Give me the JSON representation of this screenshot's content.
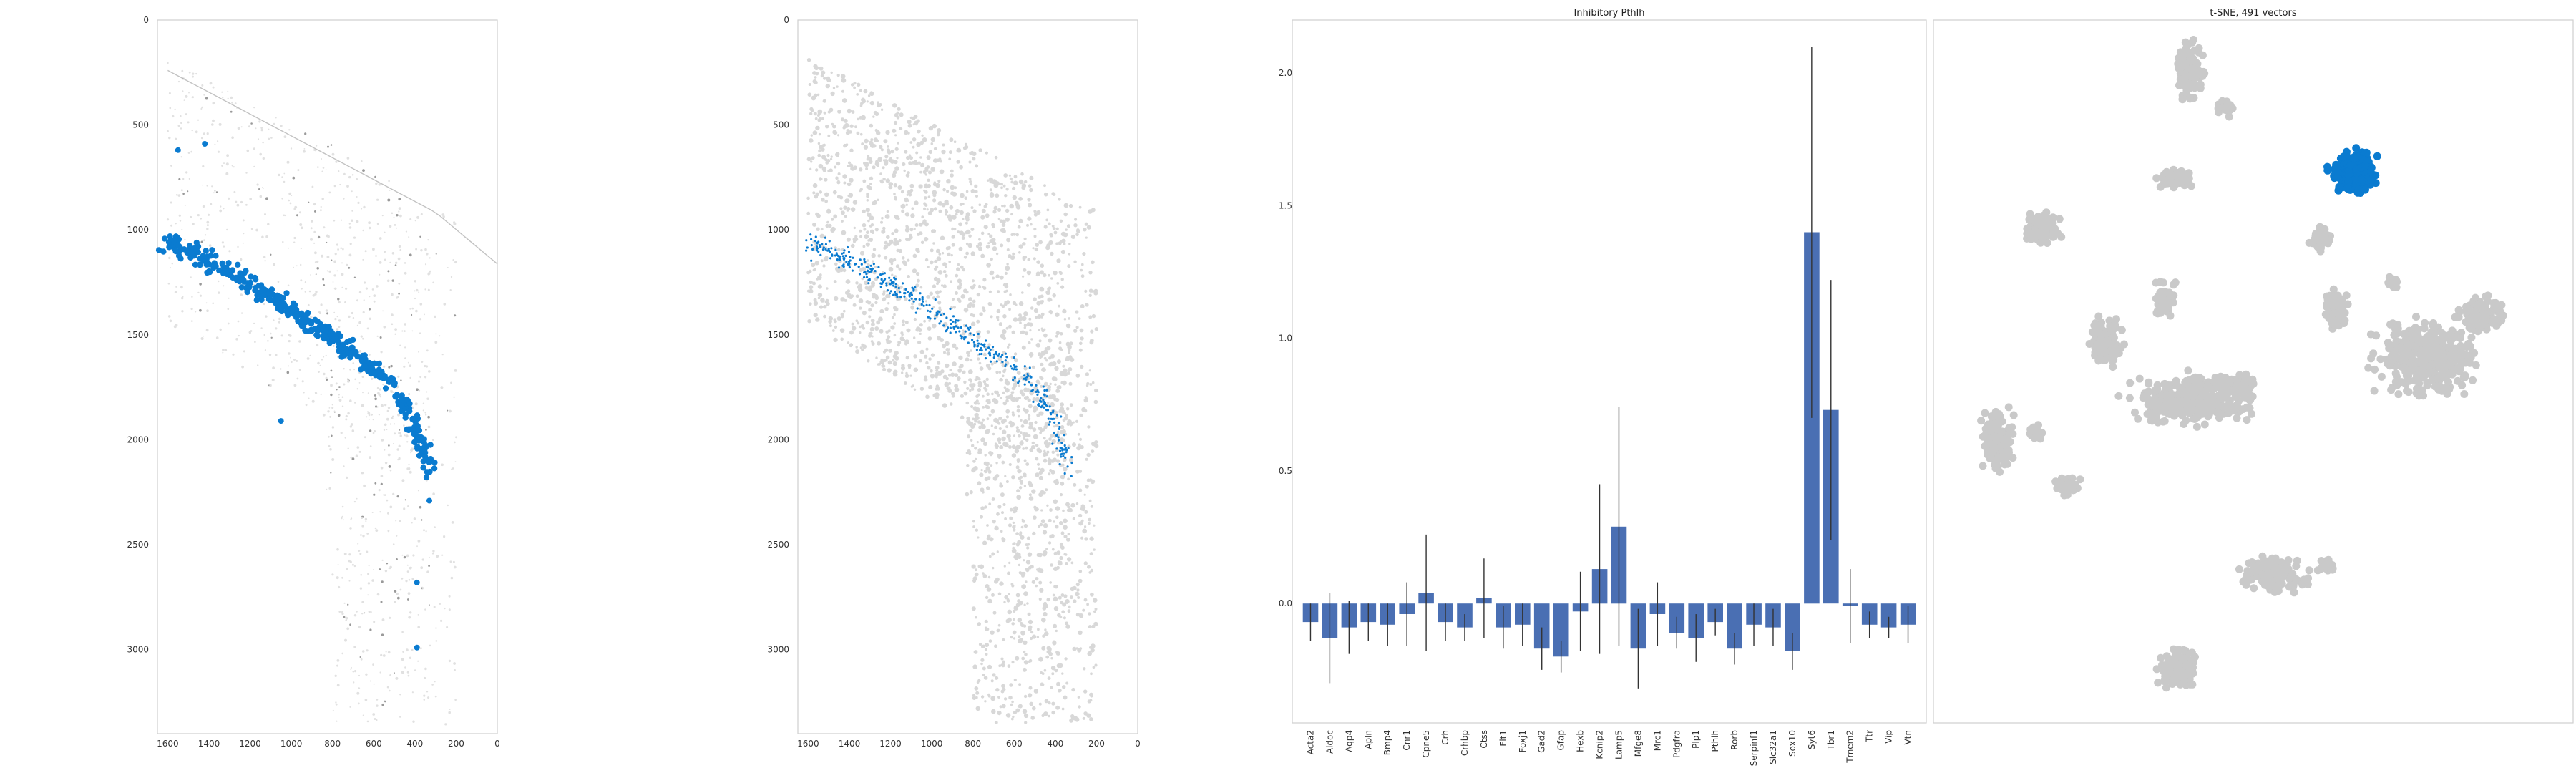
{
  "colors": {
    "accent": "#0a7bd0",
    "bar": "#4a6fb3",
    "grey_point": "#c9c9c9",
    "tissue": "#d8d8d8",
    "axis": "#cfcfcf"
  },
  "chart_data": [
    {
      "type": "scatter",
      "name": "tissue-section-expression",
      "title": "",
      "xlim": [
        1650,
        0
      ],
      "ylim": [
        3400,
        0
      ],
      "xticks": [
        1600,
        1400,
        1200,
        1000,
        800,
        600,
        400,
        200,
        0
      ],
      "yticks": [
        0,
        500,
        1000,
        1500,
        2000,
        2500,
        3000
      ],
      "xtick_labels": [
        "1600",
        "1400",
        "1200",
        "1000",
        "800",
        "600",
        "400",
        "200",
        "0"
      ],
      "ytick_labels": [
        "0",
        "500",
        "1000",
        "1500",
        "2000",
        "2500",
        "3000"
      ],
      "highlight_band": {
        "x": [
          1600,
          1500,
          1400,
          1300,
          1200,
          1100,
          1000,
          900,
          800,
          700,
          600,
          500,
          430,
          380,
          330
        ],
        "y": [
          1060,
          1100,
          1150,
          1200,
          1260,
          1320,
          1390,
          1450,
          1520,
          1590,
          1660,
          1750,
          1870,
          2000,
          2150
        ]
      },
      "outliers": [
        [
          1550,
          620
        ],
        [
          1420,
          590
        ],
        [
          1050,
          1910
        ],
        [
          390,
          2680
        ],
        [
          390,
          2990
        ],
        [
          330,
          2290
        ]
      ]
    },
    {
      "type": "scatter",
      "name": "tissue-section-cells",
      "title": "",
      "xlim": [
        1650,
        0
      ],
      "ylim": [
        3400,
        0
      ],
      "xticks": [
        1600,
        1400,
        1200,
        1000,
        800,
        600,
        400,
        200,
        0
      ],
      "yticks": [
        0,
        500,
        1000,
        1500,
        2000,
        2500,
        3000
      ],
      "xtick_labels": [
        "1600",
        "1400",
        "1200",
        "1000",
        "800",
        "600",
        "400",
        "200",
        "0"
      ],
      "ytick_labels": [
        "0",
        "500",
        "1000",
        "1500",
        "2000",
        "2500",
        "3000"
      ]
    },
    {
      "type": "bar",
      "name": "gene-expression-bars",
      "title": "Inhibitory Pthlh",
      "ylim": [
        -0.45,
        2.2
      ],
      "yticks": [
        0.0,
        0.5,
        1.0,
        1.5,
        2.0
      ],
      "ytick_labels": [
        "0.0",
        "0.5",
        "1.0",
        "1.5",
        "2.0"
      ],
      "categories": [
        "Acta2",
        "Aldoc",
        "Aqp4",
        "Apln",
        "Bmp4",
        "Cnr1",
        "Cpne5",
        "Crh",
        "Crhbp",
        "Ctss",
        "Flt1",
        "Foxj1",
        "Gad2",
        "Gfap",
        "Hexb",
        "Kcnip2",
        "Lamp5",
        "Mfge8",
        "Mrc1",
        "Pdgfra",
        "Plp1",
        "Pthlh",
        "Rorb",
        "Serpinf1",
        "Slc32a1",
        "Sox10",
        "Syt6",
        "Tbr1",
        "Tmem2",
        "Ttr",
        "Vip",
        "Vtn"
      ],
      "values": [
        -0.07,
        -0.13,
        -0.09,
        -0.07,
        -0.08,
        -0.04,
        0.04,
        -0.07,
        -0.09,
        0.02,
        -0.09,
        -0.08,
        -0.17,
        -0.2,
        -0.03,
        0.13,
        0.29,
        -0.17,
        -0.04,
        -0.11,
        -0.13,
        -0.07,
        -0.17,
        -0.08,
        -0.09,
        -0.18,
        1.4,
        0.73,
        -0.01,
        -0.08,
        -0.09,
        -0.08
      ],
      "errors": [
        0.07,
        0.17,
        0.1,
        0.07,
        0.08,
        0.12,
        0.22,
        0.07,
        0.05,
        0.15,
        0.08,
        0.08,
        0.08,
        0.06,
        0.15,
        0.32,
        0.45,
        0.15,
        0.12,
        0.06,
        0.09,
        0.05,
        0.06,
        0.08,
        0.07,
        0.07,
        0.7,
        0.49,
        0.14,
        0.05,
        0.04,
        0.07
      ]
    },
    {
      "type": "scatter",
      "name": "tsne-embedding",
      "title": "t-SNE, 491 vectors",
      "highlight_cluster": "Inhibitory Pthlh"
    }
  ]
}
